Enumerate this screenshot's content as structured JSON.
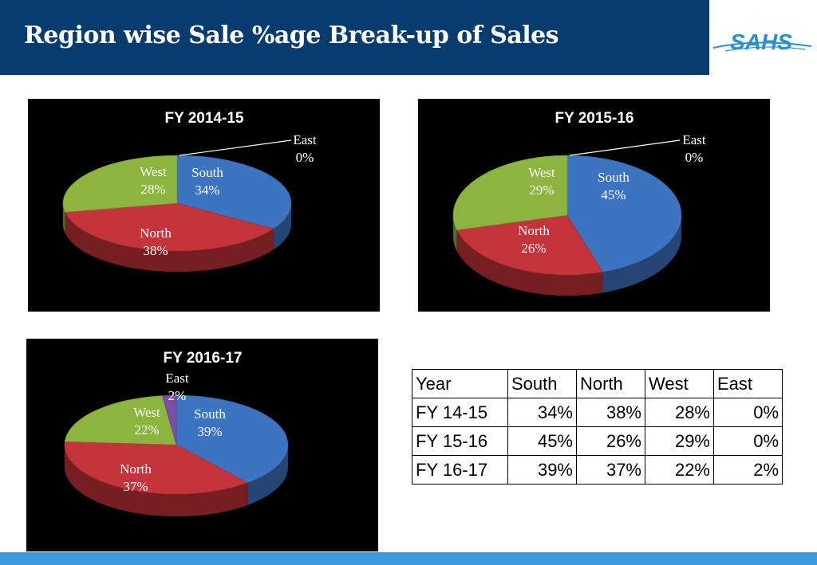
{
  "page": {
    "title": "Region wise Sale %age Break-up of Sales",
    "logo_text": "SAHS"
  },
  "colors": {
    "header_bg": "#083b6e",
    "bottom_bar": "#3a9bdc",
    "south": "#3d74c2",
    "north": "#c4343a",
    "west": "#8cb540",
    "east": "#7b4ea8"
  },
  "chart_data": [
    {
      "type": "pie",
      "title": "FY 2014-15",
      "slices": [
        {
          "label": "South",
          "value": 34,
          "display": "34%"
        },
        {
          "label": "North",
          "value": 38,
          "display": "38%"
        },
        {
          "label": "West",
          "value": 28,
          "display": "28%"
        },
        {
          "label": "East",
          "value": 0,
          "display": "0%"
        }
      ]
    },
    {
      "type": "pie",
      "title": "FY 2015-16",
      "slices": [
        {
          "label": "South",
          "value": 45,
          "display": "45%"
        },
        {
          "label": "North",
          "value": 26,
          "display": "26%"
        },
        {
          "label": "West",
          "value": 29,
          "display": "29%"
        },
        {
          "label": "East",
          "value": 0,
          "display": "0%"
        }
      ]
    },
    {
      "type": "pie",
      "title": "FY 2016-17",
      "slices": [
        {
          "label": "South",
          "value": 39,
          "display": "39%"
        },
        {
          "label": "North",
          "value": 37,
          "display": "37%"
        },
        {
          "label": "West",
          "value": 22,
          "display": "22%"
        },
        {
          "label": "East",
          "value": 2,
          "display": "2%"
        }
      ]
    },
    {
      "type": "table",
      "columns": [
        "Year",
        "South",
        "North",
        "West",
        "East"
      ],
      "rows": [
        [
          "FY 14-15",
          "34%",
          "38%",
          "28%",
          "0%"
        ],
        [
          "FY 15-16",
          "45%",
          "26%",
          "29%",
          "0%"
        ],
        [
          "FY 16-17",
          "39%",
          "37%",
          "22%",
          "2%"
        ]
      ]
    }
  ]
}
